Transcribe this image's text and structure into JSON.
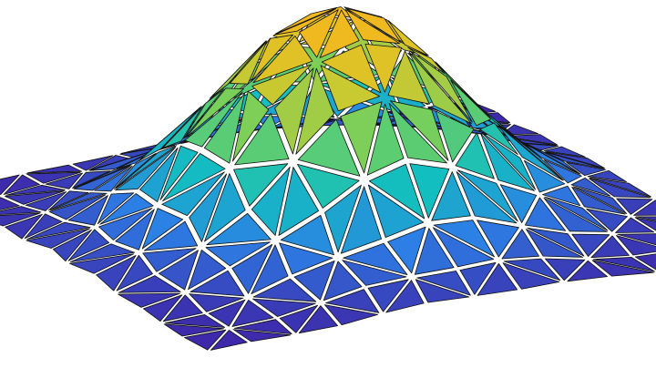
{
  "figure": {
    "kind": "3d-triangulated-surface",
    "colormap": "parula",
    "colors": {
      "low": "#3e26a8",
      "mid_low": "#2d7fe6",
      "mid": "#13bec0",
      "mid_high": "#6fd060",
      "high_mid": "#d6c82a",
      "high": "#f5b61e",
      "edge": "#111111",
      "background": "#ffffff"
    }
  }
}
